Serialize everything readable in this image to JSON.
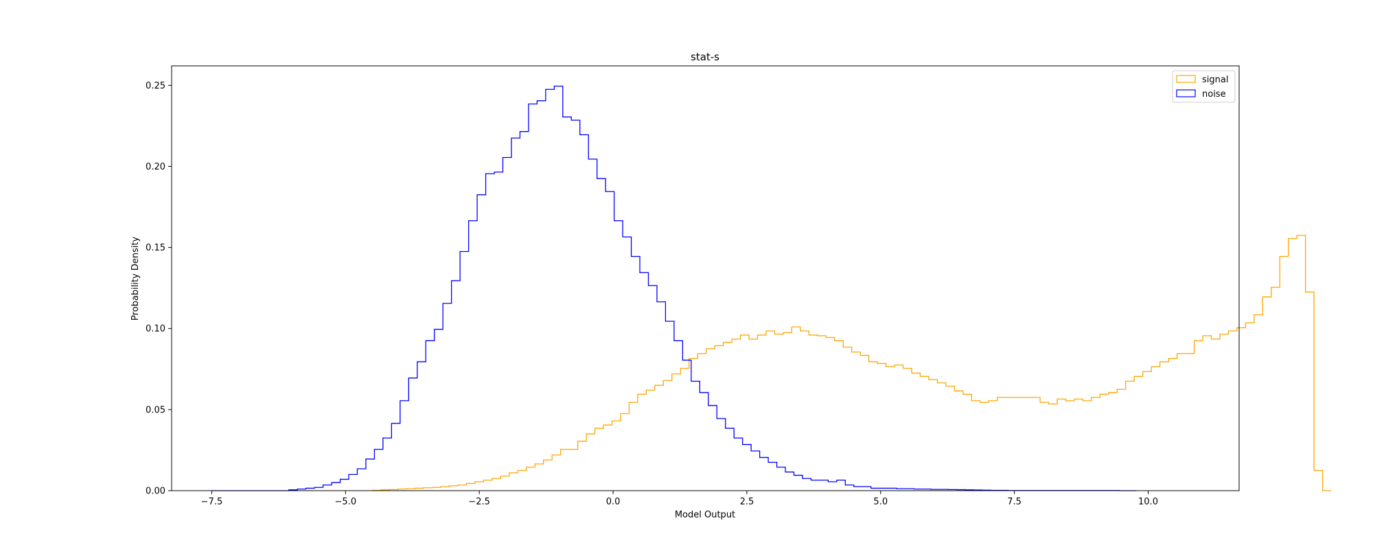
{
  "chart_data": {
    "type": "histogram-step",
    "title": "stat-s",
    "xlabel": "Model Output",
    "ylabel": "Probability Density",
    "xlim": [
      -8.25,
      11.7
    ],
    "ylim": [
      0,
      0.262
    ],
    "xticks": [
      -7.5,
      -5.0,
      -2.5,
      0.0,
      2.5,
      5.0,
      7.5,
      10.0
    ],
    "xtick_labels": [
      "−7.5",
      "−5.0",
      "−2.5",
      "0.0",
      "2.5",
      "5.0",
      "7.5",
      "10.0"
    ],
    "yticks": [
      0.0,
      0.05,
      0.1,
      0.15,
      0.2,
      0.25
    ],
    "ytick_labels": [
      "0.00",
      "0.05",
      "0.10",
      "0.15",
      "0.20",
      "0.25"
    ],
    "grid": false,
    "legend_position": "top-right",
    "series": [
      {
        "name": "signal",
        "color": "#FFA500",
        "bin_start": -4.5,
        "bin_width": 0.16,
        "values": [
          0.0002,
          0.0005,
          0.0007,
          0.001,
          0.0012,
          0.0015,
          0.0018,
          0.002,
          0.0025,
          0.003,
          0.0035,
          0.0045,
          0.0055,
          0.0065,
          0.0075,
          0.009,
          0.011,
          0.0125,
          0.0145,
          0.0165,
          0.019,
          0.022,
          0.0255,
          0.0255,
          0.0305,
          0.035,
          0.0385,
          0.0405,
          0.043,
          0.0475,
          0.0545,
          0.0595,
          0.062,
          0.065,
          0.068,
          0.072,
          0.0755,
          0.0815,
          0.0845,
          0.0875,
          0.0895,
          0.0915,
          0.0935,
          0.096,
          0.0935,
          0.096,
          0.0985,
          0.0965,
          0.0975,
          0.101,
          0.0985,
          0.096,
          0.0955,
          0.0945,
          0.0925,
          0.0885,
          0.0855,
          0.0835,
          0.0795,
          0.0785,
          0.0765,
          0.0775,
          0.0755,
          0.0725,
          0.0705,
          0.0685,
          0.0665,
          0.0645,
          0.0615,
          0.0595,
          0.0555,
          0.0545,
          0.0555,
          0.0575,
          0.0575,
          0.0575,
          0.0575,
          0.0575,
          0.0545,
          0.0535,
          0.0565,
          0.0555,
          0.0565,
          0.0555,
          0.0575,
          0.0595,
          0.0605,
          0.0625,
          0.0675,
          0.0705,
          0.0735,
          0.0765,
          0.0795,
          0.0815,
          0.0845,
          0.0845,
          0.0925,
          0.0955,
          0.0935,
          0.0965,
          0.0985,
          0.1005,
          0.1035,
          0.1085,
          0.1195,
          0.1255,
          0.1445,
          0.1555,
          0.1575,
          0.1225,
          0.0125,
          0.0
        ]
      },
      {
        "name": "noise",
        "color": "#0000FF",
        "bin_start": -7.5,
        "bin_width": 0.16,
        "values": [
          0.0,
          0.0,
          0.0,
          0.0,
          0.0,
          0.0,
          0.0,
          0.0,
          0.0,
          0.0005,
          0.001,
          0.0015,
          0.002,
          0.0035,
          0.005,
          0.007,
          0.01,
          0.0135,
          0.0195,
          0.0255,
          0.0325,
          0.0415,
          0.0555,
          0.0695,
          0.0795,
          0.0925,
          0.0995,
          0.1155,
          0.1295,
          0.1475,
          0.1665,
          0.1825,
          0.1955,
          0.1965,
          0.2055,
          0.2175,
          0.2215,
          0.2385,
          0.2405,
          0.2475,
          0.2495,
          0.2305,
          0.2285,
          0.2195,
          0.2045,
          0.1925,
          0.1845,
          0.1665,
          0.1565,
          0.1445,
          0.1345,
          0.1265,
          0.1165,
          0.1045,
          0.0925,
          0.0805,
          0.0675,
          0.0605,
          0.0525,
          0.0445,
          0.0385,
          0.0325,
          0.0285,
          0.0245,
          0.0205,
          0.0175,
          0.0145,
          0.0115,
          0.0095,
          0.0075,
          0.0065,
          0.0065,
          0.0055,
          0.0065,
          0.0035,
          0.0025,
          0.0025,
          0.0015,
          0.0015,
          0.0015,
          0.0012,
          0.0012,
          0.001,
          0.001,
          0.0008,
          0.0008,
          0.0007,
          0.0006,
          0.0005,
          0.0004,
          0.0003,
          0.0002,
          0.0002,
          0.0001,
          0.0001,
          0.0001,
          0.0001,
          0.0001,
          0.0001,
          0.0001,
          0.0001,
          0.0001,
          0.0001,
          0.0001,
          0.0001,
          0.0001,
          0.0,
          0.0
        ]
      }
    ]
  }
}
